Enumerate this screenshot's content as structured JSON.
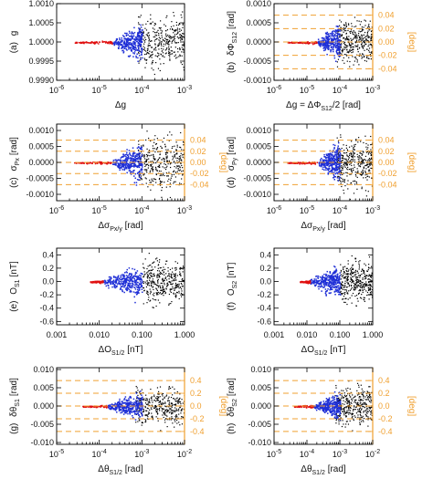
{
  "colors": {
    "axis": "#000000",
    "scatter": "#000000",
    "model": "#1f2fd6",
    "fit": "#e01010",
    "deg_axis": "#f0a030"
  },
  "chart_data": [
    {
      "id": "a",
      "type": "scatter",
      "panel_label": "(a)",
      "ylabel_main": "g",
      "xlabel_main": "Δg",
      "xscale": "log",
      "xlim": [
        1e-06,
        0.001
      ],
      "ylim": [
        0.999,
        1.001
      ],
      "x_ticks": [
        "10^-6",
        "10^-5",
        "10^-4",
        "10^-3"
      ],
      "y_ticks": [
        "1.0010",
        "1.0005",
        "1.0000",
        "0.9995",
        "0.9990"
      ],
      "y_tick_values": [
        1.001,
        1.0005,
        1.0,
        0.9995,
        0.999
      ],
      "center": 1.0,
      "spread": 0.0009,
      "red_range": [
        2.5e-06,
        2e-05
      ],
      "blue_range": [
        2e-05,
        0.0001
      ],
      "black_range": [
        8e-05,
        0.001
      ],
      "dashed_levels": [],
      "right_axis": null
    },
    {
      "id": "b",
      "type": "scatter",
      "panel_label": "(b)",
      "ylabel_main": "δΦ",
      "ylabel_sub": "S12",
      "ylabel_unit": "[rad]",
      "xlabel_main": "Δg = ΔΦ",
      "xlabel_sub": "S12",
      "xlabel_tail": "/2 [rad]",
      "xscale": "log",
      "xlim": [
        1e-06,
        0.001
      ],
      "ylim": [
        -0.001,
        0.001
      ],
      "x_ticks": [
        "10^-6",
        "10^-5",
        "10^-4",
        "10^-3"
      ],
      "y_ticks": [
        "0.0010",
        "0.0005",
        "0.0000",
        "-0.0005",
        "-0.0010"
      ],
      "y_tick_values": [
        0.001,
        0.0005,
        0.0,
        -0.0005,
        -0.001
      ],
      "center": 0.0,
      "spread": 0.0008,
      "red_range": [
        2.5e-06,
        2e-05
      ],
      "blue_range": [
        2e-05,
        0.0001
      ],
      "black_range": [
        8e-05,
        0.001
      ],
      "dashed_levels": [
        0.000698,
        0.000349,
        0.0,
        -0.000349,
        -0.000698
      ],
      "right_axis": {
        "label": "[deg]",
        "ticks": [
          "0.04",
          "0.02",
          "0.00",
          "-0.02",
          "-0.04"
        ],
        "tick_values": [
          0.000698,
          0.000349,
          0.0,
          -0.000349,
          -0.000698
        ]
      }
    },
    {
      "id": "c",
      "type": "scatter",
      "panel_label": "(c)",
      "ylabel_main": "σ",
      "ylabel_sub": "Px",
      "ylabel_unit": "[rad]",
      "xlabel_main": "Δσ",
      "xlabel_sub": "Px/y",
      "xlabel_tail": " [rad]",
      "xscale": "log",
      "xlim": [
        1e-06,
        0.001
      ],
      "ylim": [
        -0.0012,
        0.0012
      ],
      "x_ticks": [
        "10^-6",
        "10^-5",
        "10^-4",
        "10^-3"
      ],
      "y_ticks": [
        "0.0010",
        "0.0005",
        "0.0000",
        "-0.0005",
        "-0.0010"
      ],
      "y_tick_values": [
        0.001,
        0.0005,
        0.0,
        -0.0005,
        -0.001
      ],
      "center": 0.0,
      "spread": 0.0011,
      "red_range": [
        2.5e-06,
        2e-05
      ],
      "blue_range": [
        2e-05,
        0.0001
      ],
      "black_range": [
        8e-05,
        0.001
      ],
      "dashed_levels": [
        0.000698,
        0.000349,
        0.0,
        -0.000349,
        -0.000698
      ],
      "right_axis": {
        "label": "[deg]",
        "ticks": [
          "0.04",
          "0.02",
          "0.00",
          "-0.02",
          "-0.04"
        ],
        "tick_values": [
          0.000698,
          0.000349,
          0.0,
          -0.000349,
          -0.000698
        ]
      }
    },
    {
      "id": "d",
      "type": "scatter",
      "panel_label": "(d)",
      "ylabel_main": "σ",
      "ylabel_sub": "Py",
      "ylabel_unit": "[rad]",
      "xlabel_main": "Δσ",
      "xlabel_sub": "Px/y",
      "xlabel_tail": " [rad]",
      "xscale": "log",
      "xlim": [
        1e-06,
        0.001
      ],
      "ylim": [
        -0.0012,
        0.0012
      ],
      "x_ticks": [
        "10^-6",
        "10^-5",
        "10^-4",
        "10^-3"
      ],
      "y_ticks": [
        "0.0010",
        "0.0005",
        "0.0000",
        "-0.0005",
        "-0.0010"
      ],
      "y_tick_values": [
        0.001,
        0.0005,
        0.0,
        -0.0005,
        -0.001
      ],
      "center": 0.0,
      "spread": 0.0011,
      "red_range": [
        2.5e-06,
        2e-05
      ],
      "blue_range": [
        2e-05,
        0.0001
      ],
      "black_range": [
        8e-05,
        0.001
      ],
      "dashed_levels": [
        0.000698,
        0.000349,
        0.0,
        -0.000349,
        -0.000698
      ],
      "right_axis": {
        "label": "[deg]",
        "ticks": [
          "0.04",
          "0.02",
          "0.00",
          "-0.02",
          "-0.04"
        ],
        "tick_values": [
          0.000698,
          0.000349,
          0.0,
          -0.000349,
          -0.000698
        ]
      }
    },
    {
      "id": "e",
      "type": "scatter",
      "panel_label": "(e)",
      "ylabel_main": "O",
      "ylabel_sub": "S1",
      "ylabel_unit": "[nT]",
      "xlabel_main": "ΔO",
      "xlabel_sub": "S1/2",
      "xlabel_tail": " [nT]",
      "xscale": "log",
      "xlim": [
        0.001,
        1.0
      ],
      "ylim": [
        -0.65,
        0.5
      ],
      "x_ticks": [
        "0.001",
        "0.010",
        "0.100",
        "1.000"
      ],
      "y_ticks": [
        "0.4",
        "0.2",
        "0.0",
        "-0.2",
        "-0.4",
        "-0.6"
      ],
      "y_tick_values": [
        0.4,
        0.2,
        0.0,
        -0.2,
        -0.4,
        -0.6
      ],
      "center": 0.0,
      "spread": 0.45,
      "red_range": [
        0.006,
        0.012
      ],
      "blue_range": [
        0.012,
        0.1
      ],
      "black_range": [
        0.1,
        1.0
      ],
      "dashed_levels": [],
      "right_axis": null
    },
    {
      "id": "f",
      "type": "scatter",
      "panel_label": "(f)",
      "ylabel_main": "O",
      "ylabel_sub": "S2",
      "ylabel_unit": "[nT]",
      "xlabel_main": "ΔO",
      "xlabel_sub": "S1/2",
      "xlabel_tail": " [nT]",
      "xscale": "log",
      "xlim": [
        0.001,
        1.0
      ],
      "ylim": [
        -0.65,
        0.5
      ],
      "x_ticks": [
        "0.001",
        "0.010",
        "0.100",
        "1.000"
      ],
      "y_ticks": [
        "0.4",
        "0.2",
        "0.0",
        "-0.2",
        "-0.4",
        "-0.6"
      ],
      "y_tick_values": [
        0.4,
        0.2,
        0.0,
        -0.2,
        -0.4,
        -0.6
      ],
      "center": 0.0,
      "spread": 0.45,
      "red_range": [
        0.006,
        0.012
      ],
      "blue_range": [
        0.012,
        0.1
      ],
      "black_range": [
        0.1,
        1.0
      ],
      "dashed_levels": [],
      "right_axis": null
    },
    {
      "id": "g",
      "type": "scatter",
      "panel_label": "(g)",
      "ylabel_main": "δθ",
      "ylabel_sub": "S1",
      "ylabel_unit": "[rad]",
      "xlabel_main": "Δθ",
      "xlabel_sub": "S1/2",
      "xlabel_tail": " [rad]",
      "xscale": "log",
      "xlim": [
        1e-05,
        0.01
      ],
      "ylim": [
        -0.0105,
        0.0105
      ],
      "x_ticks": [
        "10^-5",
        "10^-4",
        "10^-3",
        "10^-2"
      ],
      "y_ticks": [
        "0.010",
        "0.005",
        "0.000",
        "-0.005",
        "-0.010"
      ],
      "y_tick_values": [
        0.01,
        0.005,
        0.0,
        -0.005,
        -0.01
      ],
      "center": 0.0,
      "spread": 0.007,
      "red_range": [
        4e-05,
        0.00015
      ],
      "blue_range": [
        0.00015,
        0.001
      ],
      "black_range": [
        0.0007,
        0.01
      ],
      "dashed_levels": [
        0.00698,
        0.00349,
        0.0,
        -0.00349,
        -0.00698
      ],
      "right_axis": {
        "label": "[deg]",
        "ticks": [
          "0.4",
          "0.2",
          "0.0",
          "-0.2",
          "-0.4"
        ],
        "tick_values": [
          0.00698,
          0.00349,
          0.0,
          -0.00349,
          -0.00698
        ]
      }
    },
    {
      "id": "h",
      "type": "scatter",
      "panel_label": "(h)",
      "ylabel_main": "δθ",
      "ylabel_sub": "S2",
      "ylabel_unit": "[rad]",
      "xlabel_main": "Δθ",
      "xlabel_sub": "S1/2",
      "xlabel_tail": " [rad]",
      "xscale": "log",
      "xlim": [
        1e-05,
        0.01
      ],
      "ylim": [
        -0.0105,
        0.0105
      ],
      "x_ticks": [
        "10^-5",
        "10^-4",
        "10^-3",
        "10^-2"
      ],
      "y_ticks": [
        "0.010",
        "0.005",
        "0.000",
        "-0.005",
        "-0.010"
      ],
      "y_tick_values": [
        0.01,
        0.005,
        0.0,
        -0.005,
        -0.01
      ],
      "center": 0.0,
      "spread": 0.007,
      "red_range": [
        4e-05,
        0.00015
      ],
      "blue_range": [
        0.00015,
        0.001
      ],
      "black_range": [
        0.0007,
        0.01
      ],
      "dashed_levels": [
        0.00698,
        0.00349,
        0.0,
        -0.00349,
        -0.00698
      ],
      "right_axis": {
        "label": "[deg]",
        "ticks": [
          "0.4",
          "0.2",
          "0.0",
          "-0.2",
          "-0.4"
        ],
        "tick_values": [
          0.00698,
          0.00349,
          0.0,
          -0.00349,
          -0.00698
        ]
      }
    }
  ]
}
